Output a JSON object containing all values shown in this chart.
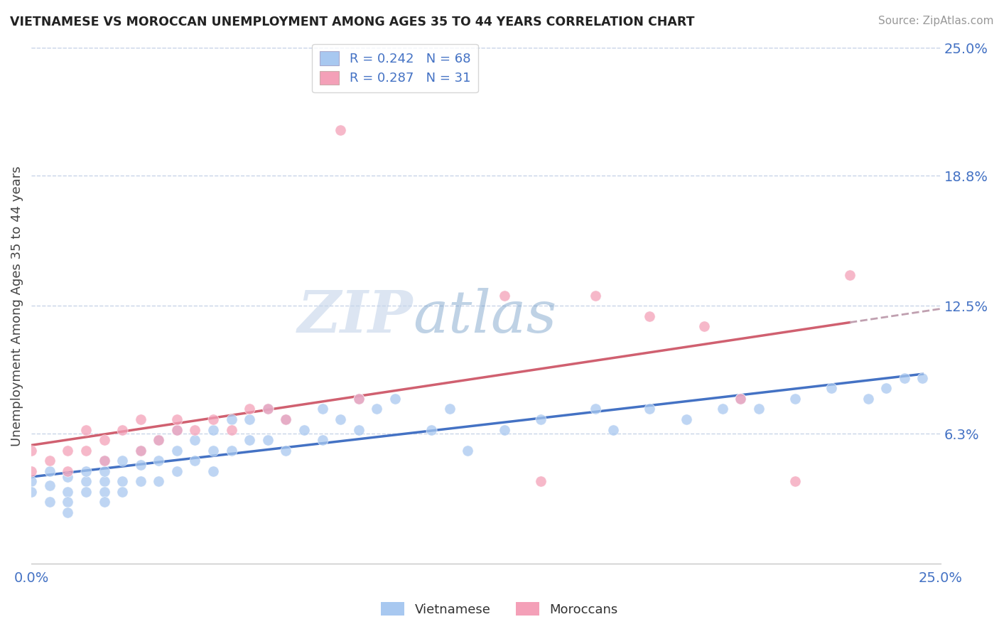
{
  "title": "VIETNAMESE VS MOROCCAN UNEMPLOYMENT AMONG AGES 35 TO 44 YEARS CORRELATION CHART",
  "source": "Source: ZipAtlas.com",
  "ylabel": "Unemployment Among Ages 35 to 44 years",
  "xlim": [
    0,
    0.25
  ],
  "ylim": [
    0,
    0.25
  ],
  "xtick_labels": [
    "0.0%",
    "25.0%"
  ],
  "ytick_labels_right": [
    "6.3%",
    "12.5%",
    "18.8%",
    "25.0%"
  ],
  "ytick_vals_right": [
    0.063,
    0.125,
    0.188,
    0.25
  ],
  "legend_R1": "R = 0.242",
  "legend_N1": "N = 68",
  "legend_R2": "R = 0.287",
  "legend_N2": "N = 31",
  "color_vietnamese": "#a8c8f0",
  "color_moroccan": "#f4a0b8",
  "color_trendline_viet": "#4472c4",
  "color_trendline_moroc": "#d06070",
  "color_trendline_moroc_dashed": "#c0a0b0",
  "color_text_blue": "#4472c4",
  "color_grid": "#c8d4e8",
  "background_color": "#ffffff",
  "watermark_zip": "ZIP",
  "watermark_atlas": "atlas",
  "viet_x": [
    0.0,
    0.0,
    0.005,
    0.005,
    0.005,
    0.01,
    0.01,
    0.01,
    0.01,
    0.015,
    0.015,
    0.015,
    0.02,
    0.02,
    0.02,
    0.02,
    0.02,
    0.025,
    0.025,
    0.025,
    0.03,
    0.03,
    0.03,
    0.035,
    0.035,
    0.035,
    0.04,
    0.04,
    0.04,
    0.045,
    0.045,
    0.05,
    0.05,
    0.05,
    0.055,
    0.055,
    0.06,
    0.06,
    0.065,
    0.065,
    0.07,
    0.07,
    0.075,
    0.08,
    0.08,
    0.085,
    0.09,
    0.09,
    0.095,
    0.1,
    0.11,
    0.115,
    0.12,
    0.13,
    0.14,
    0.155,
    0.16,
    0.17,
    0.18,
    0.19,
    0.195,
    0.2,
    0.21,
    0.22,
    0.23,
    0.235,
    0.24,
    0.245
  ],
  "viet_y": [
    0.04,
    0.035,
    0.045,
    0.038,
    0.03,
    0.042,
    0.035,
    0.03,
    0.025,
    0.04,
    0.045,
    0.035,
    0.05,
    0.04,
    0.035,
    0.045,
    0.03,
    0.05,
    0.04,
    0.035,
    0.055,
    0.048,
    0.04,
    0.06,
    0.05,
    0.04,
    0.065,
    0.055,
    0.045,
    0.06,
    0.05,
    0.065,
    0.055,
    0.045,
    0.07,
    0.055,
    0.07,
    0.06,
    0.075,
    0.06,
    0.07,
    0.055,
    0.065,
    0.075,
    0.06,
    0.07,
    0.08,
    0.065,
    0.075,
    0.08,
    0.065,
    0.075,
    0.055,
    0.065,
    0.07,
    0.075,
    0.065,
    0.075,
    0.07,
    0.075,
    0.08,
    0.075,
    0.08,
    0.085,
    0.08,
    0.085,
    0.09,
    0.09
  ],
  "moroc_x": [
    0.0,
    0.0,
    0.005,
    0.01,
    0.01,
    0.015,
    0.015,
    0.02,
    0.02,
    0.025,
    0.03,
    0.03,
    0.035,
    0.04,
    0.04,
    0.045,
    0.05,
    0.055,
    0.06,
    0.065,
    0.07,
    0.085,
    0.09,
    0.13,
    0.14,
    0.155,
    0.17,
    0.185,
    0.195,
    0.21,
    0.225
  ],
  "moroc_y": [
    0.055,
    0.045,
    0.05,
    0.055,
    0.045,
    0.055,
    0.065,
    0.06,
    0.05,
    0.065,
    0.055,
    0.07,
    0.06,
    0.065,
    0.07,
    0.065,
    0.07,
    0.065,
    0.075,
    0.075,
    0.07,
    0.21,
    0.08,
    0.13,
    0.04,
    0.13,
    0.12,
    0.115,
    0.08,
    0.04,
    0.14
  ]
}
